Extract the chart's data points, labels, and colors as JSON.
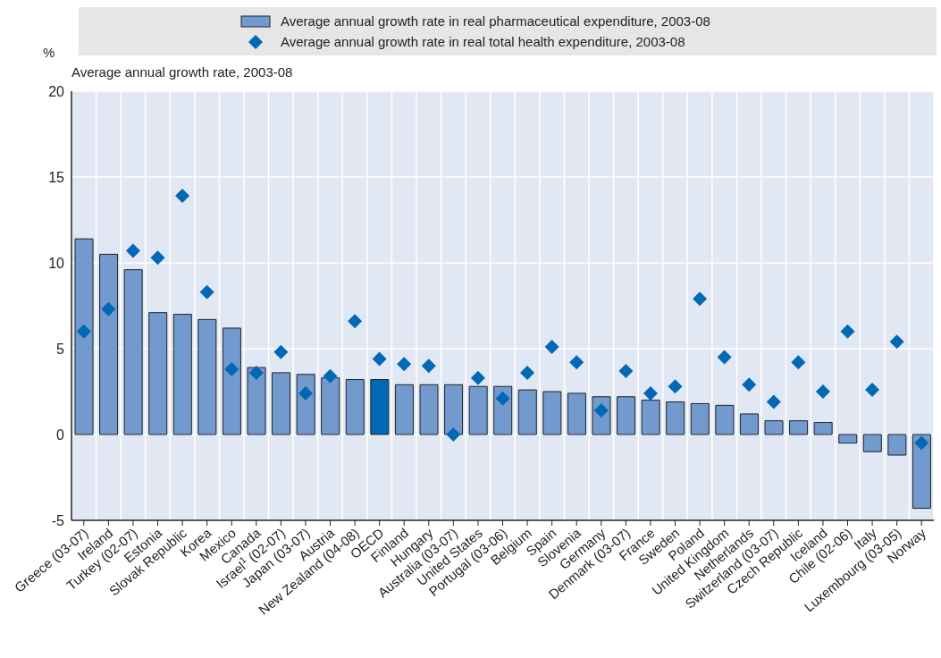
{
  "chart_data": {
    "type": "bar",
    "subtitle": "Average annual growth rate, 2003-08",
    "ylabel": "%",
    "categories": [
      "Greece (03-07)",
      "Ireland",
      "Turkey (02-07)",
      "Estonia",
      "Slovak Republic",
      "Korea",
      "Mexico",
      "Canada",
      "Israel$^{1}$ (02-07)",
      "Japan (03-07)",
      "Austria",
      "New Zealand (04-08)",
      "OECD",
      "Finland",
      "Hungary",
      "Australia (03-07)",
      "United States",
      "Portugal (03-06)",
      "Belgium",
      "Spain",
      "Slovenia",
      "Germany",
      "Denmark (03-07)",
      "France",
      "Sweden",
      "Poland",
      "United Kingdom",
      "Netherlands",
      "Switzerland (03-07)",
      "Czech Republic",
      "Iceland",
      "Chile (02-06)",
      "Italy",
      "Luxembourg (03-05)",
      "Norway"
    ],
    "series": [
      {
        "name": "Average annual growth rate in real pharmaceutical expenditure, 2003-08",
        "color": "#729acf",
        "colors": [
          "#729acf",
          "#729acf",
          "#729acf",
          "#729acf",
          "#729acf",
          "#729acf",
          "#729acf",
          "#729acf",
          "#729acf",
          "#729acf",
          "#729acf",
          "#729acf",
          "#0068b5",
          "#729acf",
          "#729acf",
          "#729acf",
          "#729acf",
          "#729acf",
          "#729acf",
          "#729acf",
          "#729acf",
          "#729acf",
          "#729acf",
          "#729acf",
          "#729acf",
          "#729acf",
          "#729acf",
          "#729acf",
          "#729acf",
          "#729acf",
          "#729acf",
          "#729acf",
          "#729acf",
          "#729acf",
          "#729acf"
        ],
        "values": [
          11.4,
          10.5,
          9.6,
          7.1,
          7.0,
          6.7,
          6.2,
          3.9,
          3.6,
          3.5,
          3.3,
          3.2,
          3.2,
          2.9,
          2.9,
          2.9,
          2.8,
          2.8,
          2.6,
          2.5,
          2.4,
          2.2,
          2.2,
          2.0,
          1.9,
          1.8,
          1.7,
          1.2,
          0.8,
          0.8,
          0.7,
          -0.5,
          -1.0,
          -1.2,
          -4.3
        ]
      },
      {
        "name": "Average annual growth rate in real total health expenditure, 2003-08",
        "type": "scatter",
        "color": "#0068b5",
        "values": [
          6.0,
          7.3,
          10.7,
          10.3,
          13.9,
          8.3,
          3.8,
          3.6,
          4.8,
          2.4,
          3.4,
          6.6,
          4.4,
          4.1,
          4.0,
          0.0,
          3.3,
          2.1,
          3.6,
          5.1,
          4.2,
          1.4,
          3.7,
          2.4,
          2.8,
          7.9,
          4.5,
          2.9,
          1.9,
          4.2,
          2.5,
          6.0,
          2.6,
          5.4,
          -0.5
        ]
      }
    ],
    "ylim": [
      -5,
      20
    ],
    "yticks": [
      -5,
      0,
      5,
      10,
      15,
      20
    ],
    "grid": true,
    "legend": "top",
    "marker": "diamond"
  }
}
